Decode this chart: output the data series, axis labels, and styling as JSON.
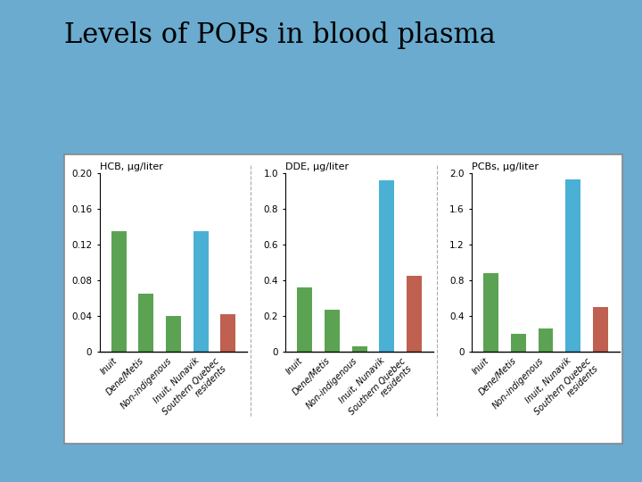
{
  "title": "Levels of POPs in blood plasma",
  "title_fontsize": 22,
  "background_color": "#6aabcf",
  "categories": [
    "Inuit",
    "Dene/Metis",
    "Non-indigenous",
    "Inuit, Nunavik",
    "Southern Quebec\nresidents"
  ],
  "panels": [
    {
      "label": "HCB, μg/liter",
      "ylim": [
        0,
        0.2
      ],
      "yticks": [
        0,
        0.04,
        0.08,
        0.12,
        0.16,
        0.2
      ],
      "ytick_labels": [
        "0",
        "0.04",
        "0.08",
        "0.12",
        "0.16",
        "0.20"
      ],
      "values": [
        0.135,
        0.065,
        0.04,
        0.135,
        0.042
      ],
      "colors": [
        "#5ba352",
        "#5ba352",
        "#5ba352",
        "#4ab0d4",
        "#c06050"
      ]
    },
    {
      "label": "DDE, μg/liter",
      "ylim": [
        0,
        1.0
      ],
      "yticks": [
        0,
        0.2,
        0.4,
        0.6,
        0.8,
        1.0
      ],
      "ytick_labels": [
        "0",
        "0.2",
        "0.4",
        "0.6",
        "0.8",
        "1.0"
      ],
      "values": [
        0.36,
        0.235,
        0.03,
        0.96,
        0.425
      ],
      "colors": [
        "#5ba352",
        "#5ba352",
        "#5ba352",
        "#4ab0d4",
        "#c06050"
      ]
    },
    {
      "label": "PCBs, μg/liter",
      "ylim": [
        0,
        2.0
      ],
      "yticks": [
        0,
        0.4,
        0.8,
        1.2,
        1.6,
        2.0
      ],
      "ytick_labels": [
        "0",
        "0.4",
        "0.8",
        "1.2",
        "1.6",
        "2.0"
      ],
      "values": [
        0.88,
        0.2,
        0.26,
        1.93,
        0.5
      ],
      "colors": [
        "#5ba352",
        "#5ba352",
        "#5ba352",
        "#4ab0d4",
        "#c06050"
      ]
    }
  ]
}
